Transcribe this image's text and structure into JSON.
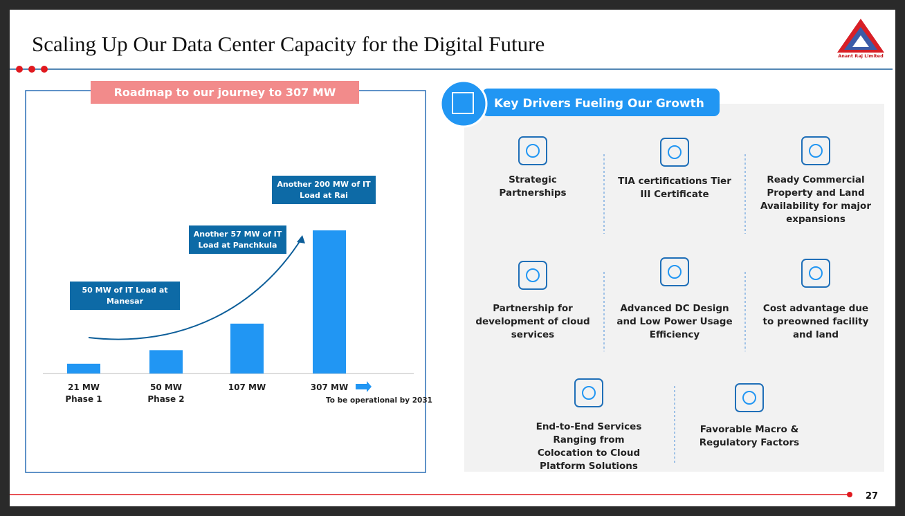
{
  "header": {
    "title": "Scaling Up Our Data Center Capacity for the Digital Future",
    "logo_text": "Anant Raj Limited"
  },
  "chart_data": {
    "type": "bar",
    "title": "Roadmap to our journey to 307 MW",
    "categories": [
      "21 MW",
      "50 MW",
      "107 MW",
      "307 MW"
    ],
    "category_sublabels": [
      "Phase 1",
      "Phase 2",
      null,
      null
    ],
    "values": [
      21,
      50,
      107,
      307
    ],
    "color": "#2196f3",
    "annotations": [
      "50 MW of IT Load at Manesar",
      "Another 57 MW of IT Load at Panchkula",
      "Another 200 MW of IT Load at Rai"
    ],
    "note": "To be operational by 2031"
  },
  "drivers": {
    "title": "Key Drivers Fueling Our Growth",
    "items": [
      "Strategic Partnerships",
      "TIA certifications Tier III Certificate",
      "Ready Commercial Property and Land Availability for major expansions",
      "Partnership for development of cloud services",
      "Advanced DC Design and Low Power Usage Efficiency",
      "Cost advantage due to preowned facility and land",
      "End-to-End Services Ranging from Colocation to Cloud Platform Solutions",
      "Favorable Macro & Regulatory Factors"
    ]
  },
  "footer": {
    "page_number": "27"
  }
}
